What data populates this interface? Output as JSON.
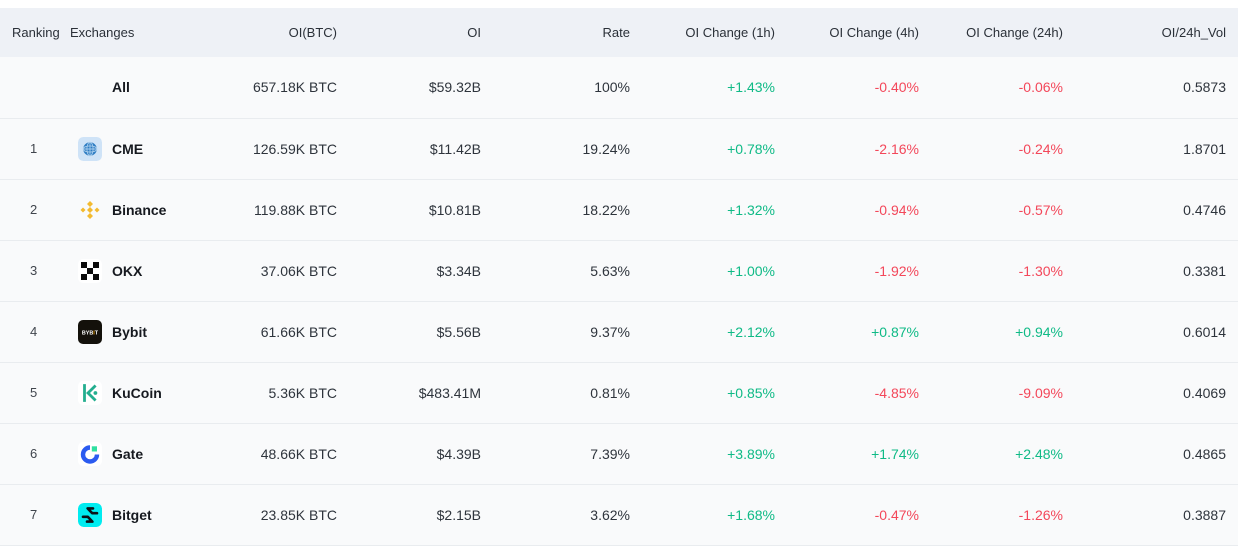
{
  "colors": {
    "positive": "#0fba86",
    "negative": "#f3475a",
    "header_bg": "#eef1f6",
    "row_bg": "#f9fafb",
    "border": "#e9ecef"
  },
  "table": {
    "columns": [
      {
        "key": "ranking",
        "label": "Ranking",
        "align": "left"
      },
      {
        "key": "exchange",
        "label": "Exchanges",
        "align": "left"
      },
      {
        "key": "oi_btc",
        "label": "OI(BTC)",
        "align": "right"
      },
      {
        "key": "oi",
        "label": "OI",
        "align": "right"
      },
      {
        "key": "rate",
        "label": "Rate",
        "align": "right"
      },
      {
        "key": "chg_1h",
        "label": "OI Change (1h)",
        "align": "right",
        "type": "change"
      },
      {
        "key": "chg_4h",
        "label": "OI Change (4h)",
        "align": "right",
        "type": "change"
      },
      {
        "key": "chg_24h",
        "label": "OI Change (24h)",
        "align": "right",
        "type": "change"
      },
      {
        "key": "oi_24h_vol",
        "label": "OI/24h_Vol",
        "align": "right"
      }
    ],
    "rows": [
      {
        "ranking": "",
        "exchange": "All",
        "icon": null,
        "oi_btc": "657.18K BTC",
        "oi": "$59.32B",
        "rate": "100%",
        "chg_1h": "+1.43%",
        "chg_4h": "-0.40%",
        "chg_24h": "-0.06%",
        "oi_24h_vol": "0.5873"
      },
      {
        "ranking": "1",
        "exchange": "CME",
        "icon": "cme-icon",
        "oi_btc": "126.59K BTC",
        "oi": "$11.42B",
        "rate": "19.24%",
        "chg_1h": "+0.78%",
        "chg_4h": "-2.16%",
        "chg_24h": "-0.24%",
        "oi_24h_vol": "1.8701"
      },
      {
        "ranking": "2",
        "exchange": "Binance",
        "icon": "binance-icon",
        "oi_btc": "119.88K BTC",
        "oi": "$10.81B",
        "rate": "18.22%",
        "chg_1h": "+1.32%",
        "chg_4h": "-0.94%",
        "chg_24h": "-0.57%",
        "oi_24h_vol": "0.4746"
      },
      {
        "ranking": "3",
        "exchange": "OKX",
        "icon": "okx-icon",
        "oi_btc": "37.06K BTC",
        "oi": "$3.34B",
        "rate": "5.63%",
        "chg_1h": "+1.00%",
        "chg_4h": "-1.92%",
        "chg_24h": "-1.30%",
        "oi_24h_vol": "0.3381"
      },
      {
        "ranking": "4",
        "exchange": "Bybit",
        "icon": "bybit-icon",
        "oi_btc": "61.66K BTC",
        "oi": "$5.56B",
        "rate": "9.37%",
        "chg_1h": "+2.12%",
        "chg_4h": "+0.87%",
        "chg_24h": "+0.94%",
        "oi_24h_vol": "0.6014"
      },
      {
        "ranking": "5",
        "exchange": "KuCoin",
        "icon": "kucoin-icon",
        "oi_btc": "5.36K BTC",
        "oi": "$483.41M",
        "rate": "0.81%",
        "chg_1h": "+0.85%",
        "chg_4h": "-4.85%",
        "chg_24h": "-9.09%",
        "oi_24h_vol": "0.4069"
      },
      {
        "ranking": "6",
        "exchange": "Gate",
        "icon": "gate-icon",
        "oi_btc": "48.66K BTC",
        "oi": "$4.39B",
        "rate": "7.39%",
        "chg_1h": "+3.89%",
        "chg_4h": "+1.74%",
        "chg_24h": "+2.48%",
        "oi_24h_vol": "0.4865"
      },
      {
        "ranking": "7",
        "exchange": "Bitget",
        "icon": "bitget-icon",
        "oi_btc": "23.85K BTC",
        "oi": "$2.15B",
        "rate": "3.62%",
        "chg_1h": "+1.68%",
        "chg_4h": "-0.47%",
        "chg_24h": "-1.26%",
        "oi_24h_vol": "0.3887"
      }
    ]
  }
}
